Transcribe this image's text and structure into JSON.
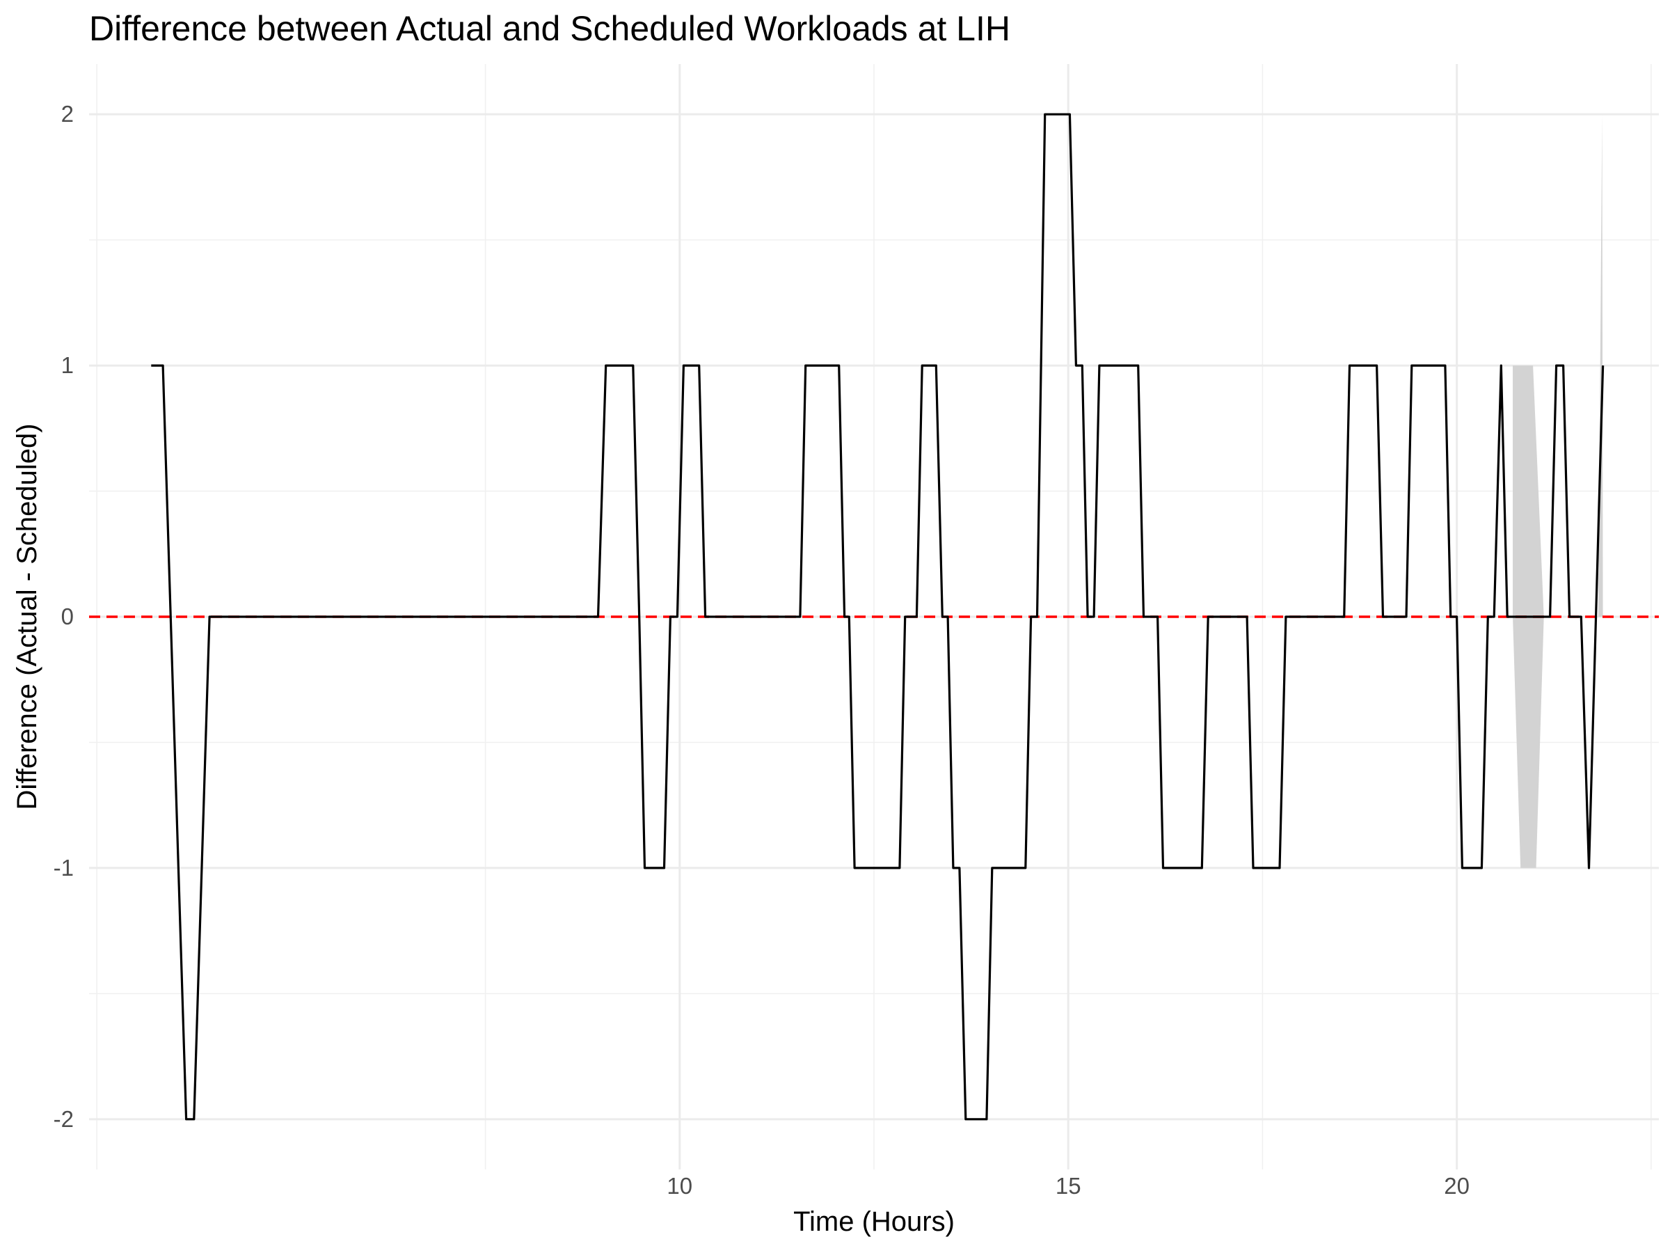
{
  "chart_data": {
    "type": "line",
    "title": "Difference between Actual and Scheduled Workloads at LIH",
    "xlabel": "Time (Hours)",
    "ylabel": "Difference (Actual - Scheduled)",
    "xlim": [
      2.4,
      22.6
    ],
    "ylim": [
      -2.2,
      2.2
    ],
    "x_ticks": [
      10,
      15,
      20
    ],
    "x_tick_labels": [
      "10",
      "15",
      "20"
    ],
    "y_ticks": [
      -2,
      -1,
      0,
      1,
      2
    ],
    "y_tick_labels": [
      "-2",
      "-1",
      "0",
      "1",
      "2"
    ],
    "grid": true,
    "reference_line": {
      "y": 0,
      "color": "#ff0000",
      "style": "dashed"
    },
    "series": [
      {
        "color": "#000000",
        "points": [
          [
            3.2,
            1
          ],
          [
            3.35,
            1
          ],
          [
            3.55,
            -1
          ],
          [
            3.65,
            -2
          ],
          [
            3.75,
            -2
          ],
          [
            3.95,
            0
          ],
          [
            8.95,
            0
          ],
          [
            9.05,
            1
          ],
          [
            9.4,
            1
          ],
          [
            9.48,
            0
          ],
          [
            9.55,
            -1
          ],
          [
            9.8,
            -1
          ],
          [
            9.88,
            0
          ],
          [
            9.97,
            0
          ],
          [
            10.05,
            1
          ],
          [
            10.25,
            1
          ],
          [
            10.33,
            0
          ],
          [
            11.55,
            0
          ],
          [
            11.62,
            1
          ],
          [
            12.05,
            1
          ],
          [
            12.12,
            0
          ],
          [
            12.18,
            0
          ],
          [
            12.25,
            -1
          ],
          [
            12.83,
            -1
          ],
          [
            12.9,
            0
          ],
          [
            13.05,
            0
          ],
          [
            13.12,
            1
          ],
          [
            13.3,
            1
          ],
          [
            13.38,
            0
          ],
          [
            13.45,
            0
          ],
          [
            13.52,
            -1
          ],
          [
            13.6,
            -1
          ],
          [
            13.68,
            -2
          ],
          [
            13.95,
            -2
          ],
          [
            14.02,
            -1
          ],
          [
            14.45,
            -1
          ],
          [
            14.52,
            0
          ],
          [
            14.6,
            0
          ],
          [
            14.7,
            2
          ],
          [
            15.02,
            2
          ],
          [
            15.1,
            1
          ],
          [
            15.18,
            1
          ],
          [
            15.25,
            0
          ],
          [
            15.33,
            0
          ],
          [
            15.4,
            1
          ],
          [
            15.9,
            1
          ],
          [
            15.97,
            0
          ],
          [
            16.15,
            0
          ],
          [
            16.22,
            -1
          ],
          [
            16.72,
            -1
          ],
          [
            16.8,
            0
          ],
          [
            17.3,
            0
          ],
          [
            17.38,
            -1
          ],
          [
            17.72,
            -1
          ],
          [
            17.8,
            0
          ],
          [
            18.55,
            0
          ],
          [
            18.62,
            1
          ],
          [
            18.97,
            1
          ],
          [
            19.05,
            0
          ],
          [
            19.35,
            0
          ],
          [
            19.42,
            1
          ],
          [
            19.85,
            1
          ],
          [
            19.92,
            0
          ],
          [
            20.0,
            0
          ],
          [
            20.07,
            -1
          ],
          [
            20.32,
            -1
          ],
          [
            20.4,
            0
          ],
          [
            20.48,
            0
          ],
          [
            20.57,
            1
          ],
          [
            20.65,
            0
          ],
          [
            21.2,
            0
          ],
          [
            21.28,
            1
          ],
          [
            21.37,
            1
          ],
          [
            21.45,
            0
          ],
          [
            21.6,
            0
          ],
          [
            21.7,
            -1
          ],
          [
            21.88,
            1
          ]
        ]
      }
    ],
    "ribbons": [
      {
        "color": "#d3d3d3",
        "upper": [
          [
            20.72,
            1
          ],
          [
            20.98,
            1
          ],
          [
            21.12,
            0
          ]
        ],
        "lower": [
          [
            20.72,
            0
          ],
          [
            20.82,
            -1
          ],
          [
            21.02,
            -1
          ],
          [
            21.12,
            0
          ]
        ]
      },
      {
        "color": "#d3d3d3",
        "upper": [
          [
            21.82,
            0
          ],
          [
            21.87,
            2
          ],
          [
            21.88,
            0
          ]
        ],
        "lower": [
          [
            21.82,
            0
          ],
          [
            21.88,
            0
          ]
        ]
      }
    ]
  }
}
